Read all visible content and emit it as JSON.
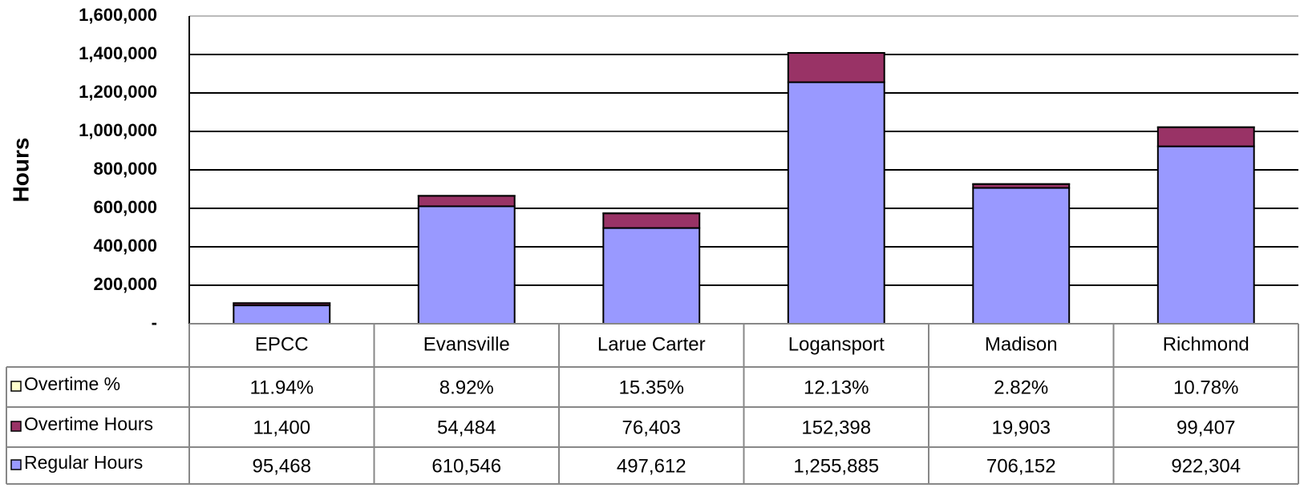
{
  "chart_data": {
    "type": "bar",
    "stacked": true,
    "y_axis_label": "Hours",
    "categories": [
      "EPCC",
      "Evansville",
      "Larue Carter",
      "Logansport",
      "Madison",
      "Richmond"
    ],
    "series": [
      {
        "name": "Overtime %",
        "color": "#ffffcc",
        "values": [
          11.94,
          8.92,
          15.35,
          12.13,
          2.82,
          10.78
        ],
        "value_labels": [
          "11.94%",
          "8.92%",
          "15.35%",
          "12.13%",
          "2.82%",
          "10.78%"
        ]
      },
      {
        "name": "Overtime Hours",
        "color": "#993366",
        "values": [
          11400,
          54484,
          76403,
          152398,
          19903,
          99407
        ],
        "value_labels": [
          "11,400",
          "54,484",
          "76,403",
          "152,398",
          "19,903",
          "99,407"
        ]
      },
      {
        "name": "Regular Hours",
        "color": "#9999ff",
        "values": [
          95468,
          610546,
          497612,
          1255885,
          706152,
          922304
        ],
        "value_labels": [
          "95,468",
          "610,546",
          "497,612",
          "1,255,885",
          "706,152",
          "922,304"
        ]
      }
    ],
    "ylim": [
      0,
      1600000
    ],
    "yticks": [
      {
        "value": 0,
        "label": "-"
      },
      {
        "value": 200000,
        "label": "200,000"
      },
      {
        "value": 400000,
        "label": "400,000"
      },
      {
        "value": 600000,
        "label": "600,000"
      },
      {
        "value": 800000,
        "label": "800,000"
      },
      {
        "value": 1000000,
        "label": "1,000,000"
      },
      {
        "value": 1200000,
        "label": "1,200,000"
      },
      {
        "value": 1400000,
        "label": "1,400,000"
      },
      {
        "value": 1600000,
        "label": "1,600,000"
      }
    ],
    "grid": true
  }
}
